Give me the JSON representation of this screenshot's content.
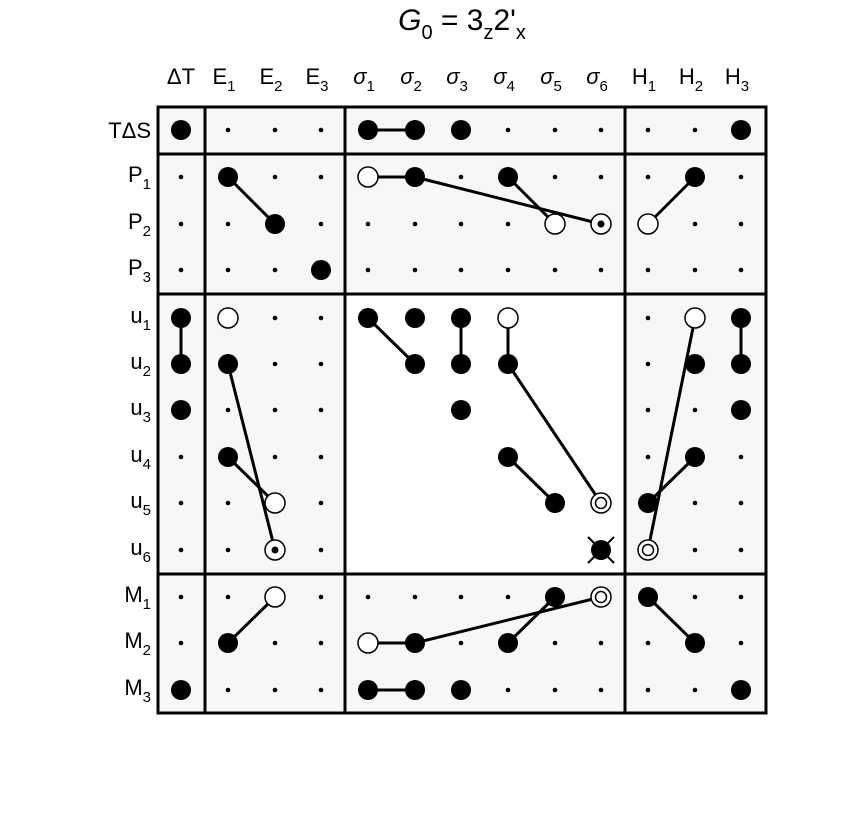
{
  "title": {
    "symbol": "G",
    "sub": "0",
    "rest": " = 3",
    "rest_sub": "z",
    "rest2": "2'",
    "rest2_sub": "x"
  },
  "columns": [
    {
      "base": "ΔT",
      "sub": ""
    },
    {
      "base": "E",
      "sub": "1"
    },
    {
      "base": "E",
      "sub": "2"
    },
    {
      "base": "E",
      "sub": "3"
    },
    {
      "base": "σ",
      "sub": "1"
    },
    {
      "base": "σ",
      "sub": "2"
    },
    {
      "base": "σ",
      "sub": "3"
    },
    {
      "base": "σ",
      "sub": "4"
    },
    {
      "base": "σ",
      "sub": "5"
    },
    {
      "base": "σ",
      "sub": "6"
    },
    {
      "base": "H",
      "sub": "1"
    },
    {
      "base": "H",
      "sub": "2"
    },
    {
      "base": "H",
      "sub": "3"
    }
  ],
  "rows": [
    {
      "base": "TΔS",
      "sub": ""
    },
    {
      "base": "P",
      "sub": "1"
    },
    {
      "base": "P",
      "sub": "2"
    },
    {
      "base": "P",
      "sub": "3"
    },
    {
      "base": "u",
      "sub": "1"
    },
    {
      "base": "u",
      "sub": "2"
    },
    {
      "base": "u",
      "sub": "3"
    },
    {
      "base": "u",
      "sub": "4"
    },
    {
      "base": "u",
      "sub": "5"
    },
    {
      "base": "u",
      "sub": "6"
    },
    {
      "base": "M",
      "sub": "1"
    },
    {
      "base": "M",
      "sub": "2"
    },
    {
      "base": "M",
      "sub": "3"
    }
  ],
  "row_groups": [
    [
      0,
      0
    ],
    [
      1,
      3
    ],
    [
      4,
      9
    ],
    [
      10,
      12
    ]
  ],
  "col_groups": [
    [
      0,
      0
    ],
    [
      1,
      3
    ],
    [
      4,
      9
    ],
    [
      10,
      12
    ]
  ],
  "blank_blocks": [
    {
      "rows": [
        4,
        9
      ],
      "cols": [
        4,
        9
      ]
    }
  ],
  "matrix": [
    [
      "F",
      ".",
      ".",
      ".",
      "F",
      "F",
      "F",
      ".",
      ".",
      ".",
      ".",
      ".",
      "F"
    ],
    [
      ".",
      "F",
      ".",
      ".",
      "O",
      "F",
      ".",
      "F",
      ".",
      ".",
      ".",
      "F",
      "."
    ],
    [
      ".",
      ".",
      "F",
      ".",
      ".",
      ".",
      ".",
      ".",
      "O",
      "D",
      "O",
      ".",
      "."
    ],
    [
      ".",
      ".",
      ".",
      "F",
      ".",
      ".",
      ".",
      ".",
      ".",
      ".",
      ".",
      ".",
      "."
    ],
    [
      "F",
      "O",
      ".",
      ".",
      "F",
      "F",
      "F",
      "O",
      ".",
      ".",
      ".",
      "O",
      "F"
    ],
    [
      "F",
      "F",
      ".",
      ".",
      ".",
      "F",
      "F",
      "F",
      ".",
      ".",
      ".",
      "F",
      "F"
    ],
    [
      "F",
      ".",
      ".",
      ".",
      ".",
      ".",
      "F",
      ".",
      ".",
      ".",
      ".",
      ".",
      "F"
    ],
    [
      ".",
      "F",
      ".",
      ".",
      ".",
      ".",
      ".",
      "F",
      ".",
      ".",
      ".",
      "F",
      "."
    ],
    [
      ".",
      ".",
      "O",
      ".",
      ".",
      ".",
      ".",
      ".",
      "F",
      "R",
      "F",
      ".",
      "."
    ],
    [
      ".",
      ".",
      "D",
      ".",
      ".",
      ".",
      ".",
      ".",
      ".",
      "X",
      "R",
      ".",
      "."
    ],
    [
      ".",
      ".",
      "O",
      ".",
      ".",
      ".",
      ".",
      ".",
      "F",
      "R",
      "F",
      ".",
      "."
    ],
    [
      ".",
      "F",
      ".",
      ".",
      "O",
      "F",
      ".",
      "F",
      ".",
      ".",
      ".",
      "F",
      "."
    ],
    [
      "F",
      ".",
      ".",
      ".",
      "F",
      "F",
      "F",
      ".",
      ".",
      ".",
      ".",
      ".",
      "F"
    ]
  ],
  "connections": [
    [
      0,
      4,
      0,
      5
    ],
    [
      1,
      1,
      2,
      2
    ],
    [
      1,
      4,
      1,
      5
    ],
    [
      1,
      5,
      2,
      9
    ],
    [
      1,
      7,
      2,
      8
    ],
    [
      2,
      10,
      1,
      11
    ],
    [
      4,
      0,
      5,
      0
    ],
    [
      4,
      4,
      5,
      5
    ],
    [
      4,
      6,
      5,
      6
    ],
    [
      4,
      7,
      5,
      7
    ],
    [
      5,
      7,
      8,
      9
    ],
    [
      4,
      12,
      5,
      12
    ],
    [
      4,
      11,
      9,
      10
    ],
    [
      5,
      1,
      9,
      2
    ],
    [
      7,
      1,
      8,
      2
    ],
    [
      7,
      7,
      8,
      8
    ],
    [
      8,
      10,
      7,
      11
    ],
    [
      10,
      2,
      11,
      1
    ],
    [
      10,
      8,
      11,
      7
    ],
    [
      11,
      4,
      11,
      5
    ],
    [
      11,
      5,
      10,
      9
    ],
    [
      10,
      10,
      11,
      11
    ],
    [
      12,
      4,
      12,
      5
    ]
  ]
}
